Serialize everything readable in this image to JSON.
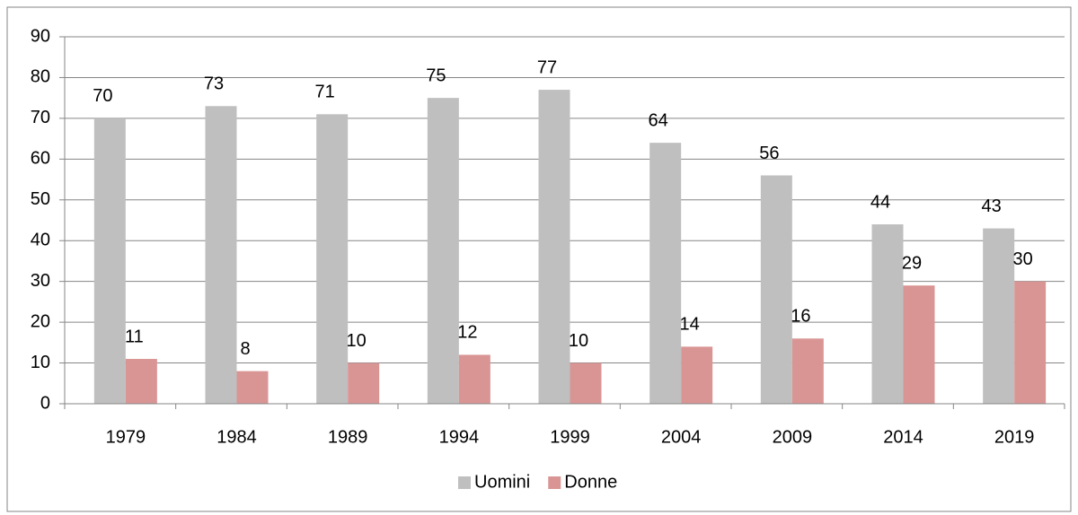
{
  "chart_data": {
    "type": "bar",
    "categories": [
      "1979",
      "1984",
      "1989",
      "1994",
      "1999",
      "2004",
      "2009",
      "2014",
      "2019"
    ],
    "series": [
      {
        "name": "Uomini",
        "color": "#bfbfbf",
        "values": [
          70,
          73,
          71,
          75,
          77,
          64,
          56,
          44,
          43
        ]
      },
      {
        "name": "Donne",
        "color": "#d99594",
        "values": [
          11,
          8,
          10,
          12,
          10,
          14,
          16,
          29,
          30
        ]
      }
    ],
    "ylim": [
      0,
      90
    ],
    "yticks": [
      0,
      10,
      20,
      30,
      40,
      50,
      60,
      70,
      80,
      90
    ],
    "grid": true,
    "legend": "bottom"
  }
}
